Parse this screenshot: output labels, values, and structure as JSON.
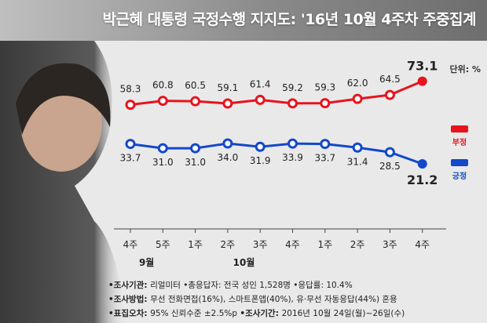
{
  "title": "박근혜 대통령 국정수행 지지도: '16년 10월 4주차 주중집계",
  "unit": "단위: %",
  "colors": {
    "negative": "#e8131c",
    "positive": "#1248c9",
    "header": "#8a8a8a"
  },
  "chart_data": {
    "type": "line",
    "categories": [
      "4주",
      "5주",
      "1주",
      "2주",
      "3주",
      "4주",
      "1주",
      "2주",
      "3주",
      "4주"
    ],
    "month_labels": [
      {
        "label": "9월",
        "start": 0,
        "end": 1
      },
      {
        "label": "10월",
        "start": 2,
        "end": 5
      }
    ],
    "series": [
      {
        "name": "부정",
        "values": [
          58.3,
          60.8,
          60.5,
          59.1,
          61.4,
          59.2,
          59.3,
          62.0,
          64.5,
          73.1
        ]
      },
      {
        "name": "긍정",
        "values": [
          33.7,
          31.0,
          31.0,
          34.0,
          31.9,
          33.9,
          33.7,
          31.4,
          28.5,
          21.2
        ]
      }
    ],
    "value_labels": {
      "부정": [
        "58.3",
        "60.8",
        "60.5",
        "59.1",
        "61.4",
        "59.2",
        "59.3",
        "62.0",
        "64.5",
        "73.1"
      ],
      "긍정": [
        "33.7",
        "31.0",
        "31.0",
        "34.0",
        "31.9",
        "33.9",
        "33.7",
        "31.4",
        "28.5",
        "21.2"
      ]
    }
  },
  "footer": {
    "r1a": "•조사기관: ",
    "r1b": "리얼미터 •총응답자: 전국 성인 1,528명 •응답률: 10.4%",
    "r2a": "•조사방법: ",
    "r2b": "무선 전화면접(16%), 스마트폰앱(40%), 유·무선 자동응답(44%) 혼용",
    "r3a": "•표집오차: ",
    "r3b": "95% 신뢰수준 ±2.5%p ",
    "r3c": "•조사기간: ",
    "r3d": "2016년 10월 24일(월)~26일(수)"
  }
}
